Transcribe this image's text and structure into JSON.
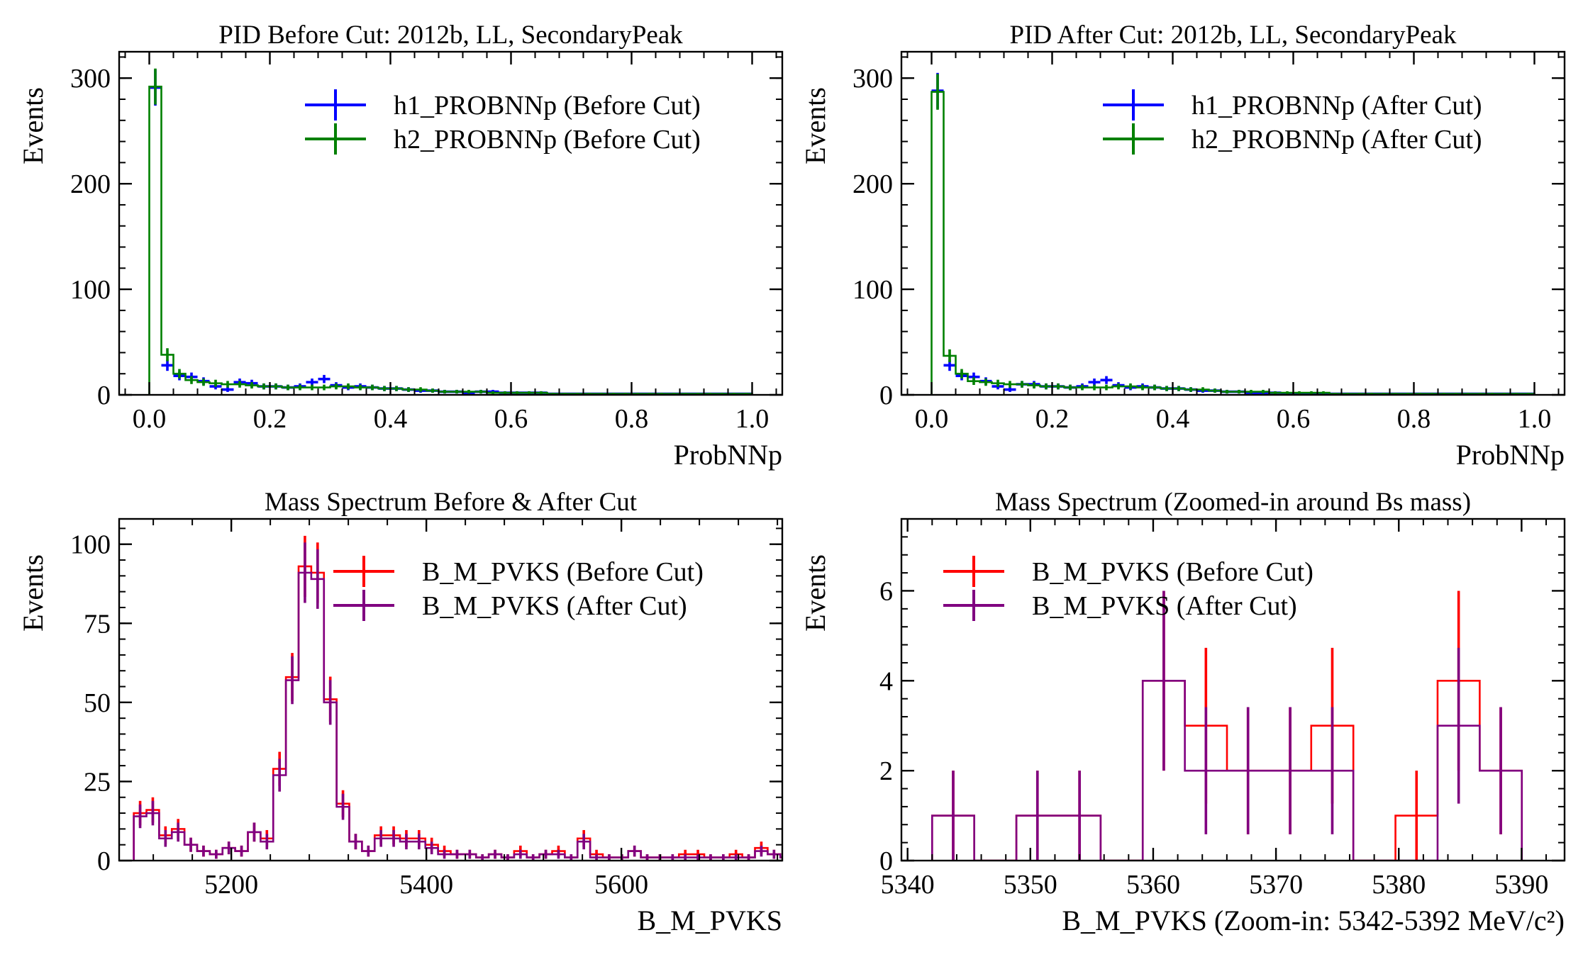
{
  "chart_data": [
    {
      "type": "histogram",
      "title": "PID Before Cut: 2012b, LL, SecondaryPeak",
      "xlabel": "ProbNNp",
      "ylabel": "Events",
      "xlim": [
        -0.05,
        1.05
      ],
      "ylim": [
        0,
        325
      ],
      "xticks": [
        "0.0",
        "0.2",
        "0.4",
        "0.6",
        "0.8",
        "1.0"
      ],
      "yticks": [
        "0",
        "100",
        "200",
        "300"
      ],
      "legend": "top-right",
      "bin_edges_start": 0.0,
      "bin_width": 0.02,
      "series": [
        {
          "name": "h1_PROBNNp (Before Cut)",
          "color": "#0000ff",
          "draw": "points",
          "values": [
            291,
            28,
            18,
            17,
            13,
            8,
            5,
            12,
            11,
            8,
            8,
            7,
            8,
            12,
            15,
            9,
            7,
            8,
            7,
            6,
            6,
            5,
            4,
            4,
            3,
            3,
            2,
            3,
            3,
            2,
            2,
            2,
            2,
            1,
            1,
            1,
            1,
            1,
            1,
            1,
            1,
            1,
            1,
            1,
            1,
            1,
            1,
            1,
            1,
            1
          ]
        },
        {
          "name": "h2_PROBNNp (Before Cut)",
          "color": "#008000",
          "draw": "step",
          "values": [
            292,
            38,
            20,
            14,
            12,
            11,
            10,
            10,
            9,
            8,
            8,
            7,
            7,
            7,
            7,
            8,
            8,
            7,
            7,
            6,
            6,
            5,
            5,
            4,
            3,
            3,
            3,
            3,
            2,
            2,
            2,
            2,
            2,
            1,
            1,
            1,
            1,
            1,
            1,
            1,
            1,
            1,
            1,
            1,
            1,
            1,
            1,
            1,
            1,
            1
          ]
        }
      ]
    },
    {
      "type": "histogram",
      "title": "PID After Cut: 2012b, LL, SecondaryPeak",
      "xlabel": "ProbNNp",
      "ylabel": "Events",
      "xlim": [
        -0.05,
        1.05
      ],
      "ylim": [
        0,
        325
      ],
      "xticks": [
        "0.0",
        "0.2",
        "0.4",
        "0.6",
        "0.8",
        "1.0"
      ],
      "yticks": [
        "0",
        "100",
        "200",
        "300"
      ],
      "legend": "top-right",
      "bin_edges_start": 0.0,
      "bin_width": 0.02,
      "series": [
        {
          "name": "h1_PROBNNp (After Cut)",
          "color": "#0000ff",
          "draw": "points",
          "values": [
            288,
            28,
            18,
            17,
            13,
            8,
            5,
            10,
            10,
            8,
            8,
            7,
            8,
            12,
            14,
            9,
            7,
            8,
            7,
            6,
            6,
            5,
            4,
            4,
            3,
            3,
            2,
            2,
            2,
            1,
            1,
            1,
            1,
            1,
            1,
            1,
            1,
            1,
            1,
            1,
            1,
            1,
            1,
            1,
            1,
            1,
            1,
            1,
            1,
            1
          ]
        },
        {
          "name": "h2_PROBNNp (After Cut)",
          "color": "#008000",
          "draw": "step",
          "values": [
            287,
            37,
            20,
            13,
            12,
            11,
            10,
            10,
            9,
            8,
            8,
            7,
            7,
            7,
            7,
            8,
            8,
            7,
            7,
            6,
            6,
            5,
            5,
            4,
            3,
            3,
            3,
            3,
            2,
            2,
            2,
            2,
            2,
            1,
            1,
            1,
            1,
            1,
            1,
            1,
            1,
            1,
            1,
            1,
            1,
            1,
            1,
            1,
            1,
            1
          ]
        }
      ]
    },
    {
      "type": "histogram",
      "title": "Mass Spectrum Before & After Cut",
      "xlabel": "B_M_PVKS",
      "ylabel": "Events",
      "xlim": [
        5085,
        5765
      ],
      "ylim": [
        0,
        108
      ],
      "xticks": [
        "5200",
        "5400",
        "5600"
      ],
      "yticks": [
        "0",
        "25",
        "50",
        "75",
        "100"
      ],
      "legend": "top-right",
      "bin_edges_start": 5100,
      "bin_width": 13,
      "series": [
        {
          "name": "B_M_PVKS (Before Cut)",
          "color": "#ff0000",
          "draw": "step",
          "values": [
            15,
            16,
            8,
            10,
            5,
            3,
            2,
            4,
            3,
            9,
            7,
            29,
            58,
            93,
            91,
            51,
            18,
            6,
            3,
            8,
            8,
            7,
            7,
            5,
            3,
            2,
            2,
            1,
            2,
            1,
            3,
            1,
            2,
            3,
            1,
            7,
            2,
            1,
            1,
            3,
            1,
            1,
            1,
            2,
            2,
            1,
            1,
            2,
            1,
            4,
            2,
            1,
            2,
            3,
            2,
            1
          ]
        },
        {
          "name": "B_M_PVKS (After Cut)",
          "color": "#800080",
          "draw": "step",
          "values": [
            14,
            15,
            7,
            9,
            5,
            3,
            2,
            4,
            3,
            9,
            6,
            27,
            57,
            91,
            89,
            50,
            17,
            6,
            3,
            7,
            7,
            6,
            6,
            4,
            2,
            2,
            2,
            1,
            2,
            1,
            2,
            1,
            2,
            2,
            1,
            6,
            1,
            1,
            1,
            3,
            1,
            1,
            1,
            1,
            1,
            1,
            1,
            1,
            1,
            3,
            2,
            1,
            2,
            3,
            2,
            1
          ]
        }
      ]
    },
    {
      "type": "histogram",
      "title": "Mass Spectrum (Zoomed-in around Bs mass)",
      "xlabel": "B_M_PVKS (Zoom-in: 5342-5392 MeV/c²)",
      "ylabel": "Events",
      "xlim": [
        5339.5,
        5393.5
      ],
      "ylim": [
        0,
        7.6
      ],
      "xticks": [
        "5340",
        "5350",
        "5360",
        "5370",
        "5380",
        "5390"
      ],
      "yticks": [
        "0",
        "2",
        "4",
        "6"
      ],
      "legend": "top-left",
      "bin_edges_start": 5342,
      "bin_width": 3.43,
      "series": [
        {
          "name": "B_M_PVKS (Before Cut)",
          "color": "#ff0000",
          "draw": "step",
          "values": [
            1,
            0,
            1,
            1,
            0,
            4,
            3,
            2,
            2,
            3,
            0,
            1,
            4,
            2
          ]
        },
        {
          "name": "B_M_PVKS (After Cut)",
          "color": "#800080",
          "draw": "step",
          "values": [
            1,
            0,
            1,
            1,
            0,
            4,
            2,
            2,
            2,
            2,
            0,
            0,
            3,
            2
          ]
        }
      ]
    }
  ]
}
